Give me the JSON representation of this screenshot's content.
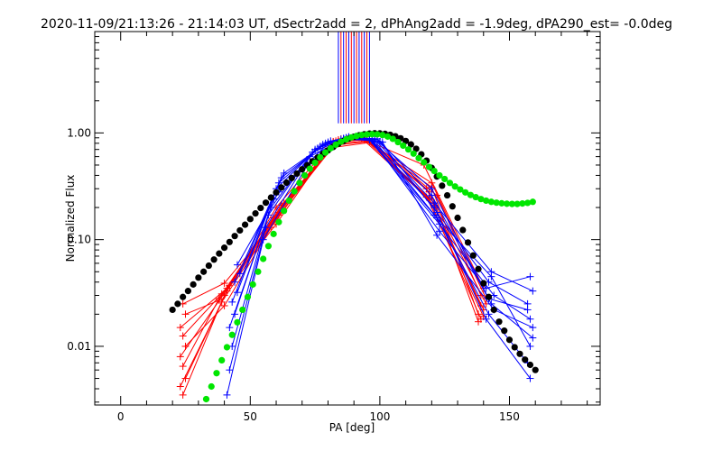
{
  "chart_data": {
    "type": "scatter",
    "title": "2020-11-09/21:13:26 - 21:14:03 UT, dSectr2add = 2, dPhAng2add = -1.9deg, dPA290_est= -0.0deg",
    "xlabel": "PA [deg]",
    "ylabel": "Normalized Flux",
    "xlim": [
      -10,
      185
    ],
    "ylim_log10": [
      -2.55,
      0.95
    ],
    "x_ticks": [
      0,
      50,
      100,
      150
    ],
    "x_tick_labels": [
      "0",
      "50",
      "100",
      "150"
    ],
    "y_ticks": [
      0.01,
      0.1,
      1.0
    ],
    "y_tick_labels": [
      "0.01",
      "0.10",
      "1.00"
    ],
    "y_scale": "log",
    "grid": false,
    "vertical_markers": {
      "x_values": [
        84,
        85,
        86,
        87,
        88,
        89,
        90,
        91,
        92,
        93,
        94,
        95,
        96
      ],
      "colors": [
        "#0000ff",
        "#ff0000",
        "#0000ff",
        "#ff0000",
        "#0000ff",
        "#ff0000",
        "#0000ff",
        "#ff0000",
        "#0000ff",
        "#ff0000",
        "#0000ff",
        "#ff0000",
        "#0000ff"
      ],
      "y_top_log10": 0.95,
      "y_bottom_log10": 0.09
    },
    "series": [
      {
        "name": "model_black",
        "style": "dots",
        "color": "#000000",
        "x": [
          20,
          22,
          24,
          26,
          28,
          30,
          32,
          34,
          36,
          38,
          40,
          42,
          44,
          46,
          48,
          50,
          52,
          54,
          56,
          58,
          60,
          62,
          64,
          66,
          68,
          70,
          72,
          74,
          76,
          78,
          80,
          82,
          84,
          86,
          88,
          90,
          92,
          94,
          96,
          98,
          100,
          102,
          104,
          106,
          108,
          110,
          112,
          114,
          116,
          118,
          120,
          122,
          124,
          126,
          128,
          130,
          132,
          134,
          136,
          138,
          140,
          142,
          144,
          146,
          148,
          150,
          152,
          154,
          156,
          158,
          160
        ],
        "y": [
          0.022,
          0.025,
          0.029,
          0.033,
          0.038,
          0.044,
          0.05,
          0.057,
          0.065,
          0.074,
          0.084,
          0.095,
          0.108,
          0.122,
          0.138,
          0.156,
          0.176,
          0.198,
          0.222,
          0.248,
          0.277,
          0.308,
          0.342,
          0.378,
          0.416,
          0.456,
          0.498,
          0.542,
          0.588,
          0.636,
          0.686,
          0.738,
          0.79,
          0.84,
          0.884,
          0.92,
          0.95,
          0.972,
          0.986,
          0.992,
          0.99,
          0.98,
          0.96,
          0.93,
          0.89,
          0.84,
          0.78,
          0.71,
          0.63,
          0.55,
          0.47,
          0.39,
          0.32,
          0.26,
          0.205,
          0.16,
          0.123,
          0.094,
          0.071,
          0.053,
          0.039,
          0.029,
          0.022,
          0.017,
          0.014,
          0.0115,
          0.0098,
          0.0085,
          0.0075,
          0.0067,
          0.006
        ]
      },
      {
        "name": "model_green",
        "style": "dots",
        "color": "#00e600",
        "x": [
          33,
          35,
          37,
          39,
          41,
          43,
          45,
          47,
          49,
          51,
          53,
          55,
          57,
          59,
          61,
          63,
          65,
          67,
          69,
          71,
          73,
          75,
          77,
          79,
          81,
          83,
          85,
          87,
          89,
          91,
          93,
          95,
          97,
          99,
          101,
          103,
          105,
          107,
          109,
          111,
          113,
          115,
          117,
          119,
          121,
          123,
          125,
          127,
          129,
          131,
          133,
          135,
          137,
          139,
          141,
          143,
          145,
          147,
          149,
          151,
          153,
          155,
          157,
          159
        ],
        "y": [
          0.0032,
          0.0042,
          0.0056,
          0.0074,
          0.0098,
          0.0128,
          0.0168,
          0.022,
          0.029,
          0.038,
          0.05,
          0.066,
          0.087,
          0.113,
          0.146,
          0.186,
          0.232,
          0.284,
          0.34,
          0.4,
          0.462,
          0.525,
          0.59,
          0.655,
          0.718,
          0.776,
          0.828,
          0.872,
          0.908,
          0.936,
          0.956,
          0.968,
          0.973,
          0.97,
          0.955,
          0.925,
          0.88,
          0.82,
          0.76,
          0.7,
          0.64,
          0.58,
          0.53,
          0.48,
          0.44,
          0.4,
          0.37,
          0.34,
          0.315,
          0.295,
          0.277,
          0.262,
          0.25,
          0.24,
          0.232,
          0.226,
          0.222,
          0.219,
          0.217,
          0.216,
          0.216,
          0.218,
          0.221,
          0.226
        ]
      },
      {
        "name": "obs_red",
        "style": "lines+plus",
        "color": "#ff0000",
        "lines": [
          {
            "x": [
              24,
              40,
              60,
              82,
              95,
              118,
              140
            ],
            "y": [
              0.0035,
              0.03,
              0.2,
              0.83,
              0.86,
              0.3,
              0.022
            ]
          },
          {
            "x": [
              23,
              39,
              61,
              83,
              94,
              119,
              139
            ],
            "y": [
              0.0042,
              0.026,
              0.17,
              0.8,
              0.88,
              0.24,
              0.018
            ]
          },
          {
            "x": [
              25,
              41,
              62,
              84,
              93,
              120,
              141
            ],
            "y": [
              0.005,
              0.033,
              0.19,
              0.86,
              0.9,
              0.34,
              0.028
            ]
          },
          {
            "x": [
              24,
              38,
              59,
              81,
              96,
              121,
              138
            ],
            "y": [
              0.0065,
              0.028,
              0.16,
              0.76,
              0.83,
              0.22,
              0.017
            ]
          },
          {
            "x": [
              23,
              42,
              63,
              85,
              92,
              117,
              140
            ],
            "y": [
              0.008,
              0.037,
              0.22,
              0.88,
              0.91,
              0.5,
              0.035
            ]
          },
          {
            "x": [
              25,
              40,
              58,
              80,
              97,
              122,
              139
            ],
            "y": [
              0.01,
              0.024,
              0.13,
              0.72,
              0.82,
              0.26,
              0.03
            ]
          },
          {
            "x": [
              24,
              39,
              60,
              82,
              95,
              119,
              141
            ],
            "y": [
              0.0125,
              0.031,
              0.14,
              0.82,
              0.87,
              0.28,
              0.025
            ]
          },
          {
            "x": [
              23,
              41,
              61,
              83,
              94,
              120,
              138
            ],
            "y": [
              0.015,
              0.035,
              0.18,
              0.84,
              0.86,
              0.31,
              0.02
            ]
          },
          {
            "x": [
              25,
              38,
              62,
              84,
              93,
              118,
              140
            ],
            "y": [
              0.02,
              0.027,
              0.21,
              0.86,
              0.89,
              0.25,
              0.019
            ]
          },
          {
            "x": [
              24,
              40,
              60,
              81,
              96,
              121,
              139
            ],
            "y": [
              0.025,
              0.039,
              0.15,
              0.79,
              0.84,
              0.21,
              0.024
            ]
          }
        ]
      },
      {
        "name": "obs_blue",
        "style": "lines+plus",
        "color": "#0000ff",
        "lines": [
          {
            "x": [
              41,
              55,
              72,
              86,
              97,
              121,
              141,
              158
            ],
            "y": [
              0.0035,
              0.1,
              0.5,
              0.88,
              0.85,
              0.2,
              0.018,
              0.005
            ]
          },
          {
            "x": [
              42,
              56,
              73,
              87,
              98,
              122,
              142,
              157
            ],
            "y": [
              0.006,
              0.13,
              0.6,
              0.9,
              0.84,
              0.16,
              0.02,
              0.007
            ]
          },
          {
            "x": [
              43,
              57,
              74,
              88,
              99,
              120,
              143,
              159
            ],
            "y": [
              0.01,
              0.17,
              0.66,
              0.91,
              0.88,
              0.26,
              0.025,
              0.012
            ]
          },
          {
            "x": [
              42,
              58,
              75,
              85,
              96,
              123,
              144,
              158
            ],
            "y": [
              0.015,
              0.2,
              0.7,
              0.87,
              0.86,
              0.14,
              0.03,
              0.018
            ]
          },
          {
            "x": [
              44,
              59,
              76,
              86,
              100,
              122,
              142,
              157
            ],
            "y": [
              0.02,
              0.24,
              0.72,
              0.89,
              0.83,
              0.18,
              0.04,
              0.025
            ]
          },
          {
            "x": [
              43,
              60,
              77,
              87,
              98,
              121,
              143,
              159
            ],
            "y": [
              0.026,
              0.3,
              0.75,
              0.9,
              0.87,
              0.22,
              0.05,
              0.033
            ]
          },
          {
            "x": [
              45,
              61,
              78,
              88,
              97,
              123,
              141,
              158
            ],
            "y": [
              0.032,
              0.34,
              0.78,
              0.92,
              0.85,
              0.12,
              0.035,
              0.045
            ]
          },
          {
            "x": [
              44,
              62,
              79,
              86,
              99,
              120,
              142,
              157
            ],
            "y": [
              0.04,
              0.38,
              0.8,
              0.88,
              0.84,
              0.3,
              0.028,
              0.022
            ]
          },
          {
            "x": [
              46,
              63,
              80,
              87,
              101,
              122,
              144,
              159
            ],
            "y": [
              0.048,
              0.42,
              0.82,
              0.9,
              0.82,
              0.11,
              0.022,
              0.015
            ]
          },
          {
            "x": [
              45,
              61,
              81,
              88,
              96,
              121,
              143,
              158
            ],
            "y": [
              0.058,
              0.28,
              0.84,
              0.91,
              0.88,
              0.17,
              0.045,
              0.01
            ]
          }
        ]
      }
    ]
  }
}
